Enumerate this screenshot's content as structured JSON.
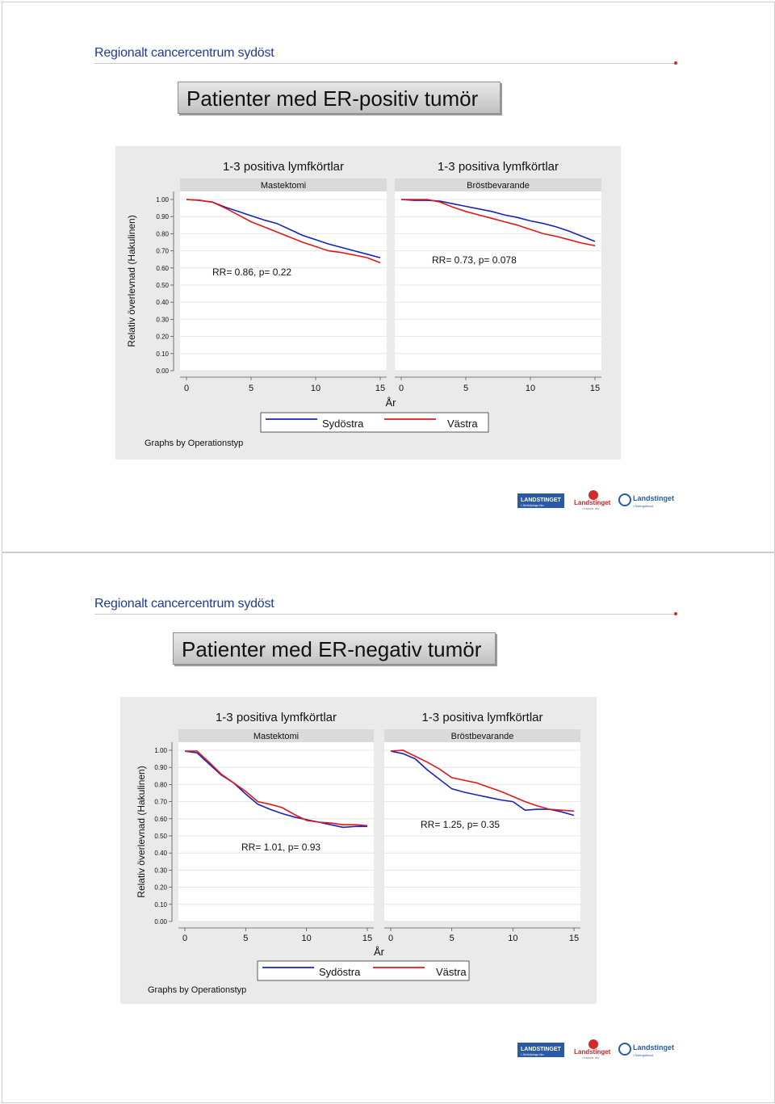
{
  "slides": [
    {
      "org": "Regionalt cancercentrum sydöst",
      "title": "Patienter med ER-positiv tumör",
      "chart_data": {
        "type": "line",
        "ylabel": "Relativ överlevnad (Hakulinen)",
        "xlabel": "År",
        "note": "Graphs by Operationstyp",
        "ylim": [
          0,
          1
        ],
        "xlim": [
          0,
          15
        ],
        "yticks": [
          "0.00",
          "0.10",
          "0.20",
          "0.30",
          "0.40",
          "0.50",
          "0.60",
          "0.70",
          "0.80",
          "0.90",
          "1.00"
        ],
        "xticks": [
          "0",
          "5",
          "10",
          "15"
        ],
        "legend": [
          "Sydöstra",
          "Västra"
        ],
        "panels": [
          {
            "title": "1-3 positiva lymfkörtlar",
            "subtitle": "Mastektomi",
            "annotation": "RR= 0.86, p= 0.22",
            "series": [
              {
                "name": "Sydöstra",
                "x": [
                  0,
                  1,
                  2,
                  3,
                  4,
                  5,
                  6,
                  7,
                  8,
                  9,
                  10,
                  11,
                  12,
                  13,
                  14,
                  15
                ],
                "y": [
                  1.0,
                  0.995,
                  0.985,
                  0.95,
                  0.91,
                  0.87,
                  0.84,
                  0.81,
                  0.78,
                  0.75,
                  0.725,
                  0.7,
                  0.69,
                  0.675,
                  0.66,
                  0.63
                ]
              },
              {
                "name": "Västra",
                "x": [
                  0,
                  1,
                  2,
                  3,
                  4,
                  5,
                  6,
                  7,
                  8,
                  9,
                  10,
                  11,
                  12,
                  13,
                  14,
                  15
                ],
                "y": [
                  1.0,
                  0.995,
                  0.985,
                  0.955,
                  0.93,
                  0.905,
                  0.88,
                  0.86,
                  0.825,
                  0.79,
                  0.765,
                  0.74,
                  0.72,
                  0.7,
                  0.68,
                  0.66
                ]
              }
            ]
          },
          {
            "title": "1-3 positiva lymfkörtlar",
            "subtitle": "Bröstbevarande",
            "annotation": "RR= 0.73, p= 0.078",
            "series": [
              {
                "name": "Sydöstra",
                "x": [
                  0,
                  1,
                  2,
                  3,
                  4,
                  5,
                  6,
                  7,
                  8,
                  9,
                  10,
                  11,
                  12,
                  13,
                  14,
                  15
                ],
                "y": [
                  1.0,
                  1.0,
                  1.0,
                  0.985,
                  0.955,
                  0.93,
                  0.91,
                  0.89,
                  0.87,
                  0.85,
                  0.825,
                  0.8,
                  0.785,
                  0.765,
                  0.745,
                  0.73
                ]
              },
              {
                "name": "Västra",
                "x": [
                  0,
                  1,
                  2,
                  3,
                  4,
                  5,
                  6,
                  7,
                  8,
                  9,
                  10,
                  11,
                  12,
                  13,
                  14,
                  15
                ],
                "y": [
                  1.0,
                  0.995,
                  0.995,
                  0.99,
                  0.975,
                  0.96,
                  0.945,
                  0.93,
                  0.91,
                  0.895,
                  0.875,
                  0.86,
                  0.84,
                  0.815,
                  0.785,
                  0.755
                ]
              }
            ]
          }
        ]
      }
    },
    {
      "org": "Regionalt cancercentrum sydöst",
      "title": "Patienter med ER-negativ tumör",
      "chart_data": {
        "type": "line",
        "ylabel": "Relativ överlevnad (Hakulinen)",
        "xlabel": "År",
        "note": "Graphs by Operationstyp",
        "ylim": [
          0,
          1
        ],
        "xlim": [
          0,
          15
        ],
        "yticks": [
          "0.00",
          "0.10",
          "0.20",
          "0.30",
          "0.40",
          "0.50",
          "0.60",
          "0.70",
          "0.80",
          "0.90",
          "1.00"
        ],
        "xticks": [
          "0",
          "5",
          "10",
          "15"
        ],
        "legend": [
          "Sydöstra",
          "Västra"
        ],
        "panels": [
          {
            "title": "1-3 positiva lymfkörtlar",
            "subtitle": "Mastektomi",
            "annotation": "RR= 1.01, p= 0.93",
            "series": [
              {
                "name": "Sydöstra",
                "x": [
                  0,
                  1,
                  2,
                  3,
                  4,
                  5,
                  6,
                  7,
                  8,
                  9,
                  10,
                  11,
                  12,
                  13,
                  14,
                  15
                ],
                "y": [
                  0.995,
                  0.995,
                  0.93,
                  0.86,
                  0.81,
                  0.76,
                  0.7,
                  0.685,
                  0.665,
                  0.625,
                  0.59,
                  0.58,
                  0.575,
                  0.565,
                  0.565,
                  0.56
                ]
              },
              {
                "name": "Västra",
                "x": [
                  0,
                  1,
                  2,
                  3,
                  4,
                  5,
                  6,
                  7,
                  8,
                  9,
                  10,
                  11,
                  12,
                  13,
                  14,
                  15
                ],
                "y": [
                  0.995,
                  0.985,
                  0.92,
                  0.855,
                  0.81,
                  0.745,
                  0.685,
                  0.655,
                  0.63,
                  0.61,
                  0.595,
                  0.58,
                  0.565,
                  0.55,
                  0.555,
                  0.555
                ]
              }
            ]
          },
          {
            "title": "1-3 positiva lymfkörtlar",
            "subtitle": "Bröstbevarande",
            "annotation": "RR= 1.25, p= 0.35",
            "series": [
              {
                "name": "Sydöstra",
                "x": [
                  0,
                  1,
                  2,
                  3,
                  4,
                  5,
                  6,
                  7,
                  8,
                  9,
                  10,
                  11,
                  12,
                  13,
                  14,
                  15
                ],
                "y": [
                  0.995,
                  1.0,
                  0.965,
                  0.93,
                  0.89,
                  0.84,
                  0.825,
                  0.81,
                  0.785,
                  0.76,
                  0.73,
                  0.7,
                  0.675,
                  0.655,
                  0.65,
                  0.645
                ]
              },
              {
                "name": "Västra",
                "x": [
                  0,
                  1,
                  2,
                  3,
                  4,
                  5,
                  6,
                  7,
                  8,
                  9,
                  10,
                  11,
                  12,
                  13,
                  14,
                  15
                ],
                "y": [
                  0.995,
                  0.98,
                  0.95,
                  0.885,
                  0.83,
                  0.775,
                  0.755,
                  0.74,
                  0.725,
                  0.71,
                  0.7,
                  0.65,
                  0.655,
                  0.655,
                  0.64,
                  0.62
                ]
              }
            ]
          }
        ]
      }
    }
  ],
  "colors": {
    "sydostra": "#1a22b8",
    "vastra": "#e01818",
    "plot_bg": "#eaeaea",
    "panel_bg": "#ffffff",
    "strip_bg": "#dadada"
  },
  "logos": [
    {
      "name": "LANDSTINGET",
      "sub": "i Jönköpings län"
    },
    {
      "name": "Landstinget",
      "sub": "i Kalmar län"
    },
    {
      "name": "Landstinget",
      "sub": "i Östergötland"
    }
  ]
}
